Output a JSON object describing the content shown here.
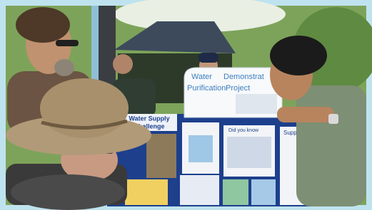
{
  "sign": {
    "lines": [
      "Water",
      "Demonstrat",
      "Purification",
      "Project"
    ]
  },
  "board": {
    "panel_titles": [
      "Water Supply",
      "Challenge",
      "Did you know",
      "Support"
    ]
  }
}
